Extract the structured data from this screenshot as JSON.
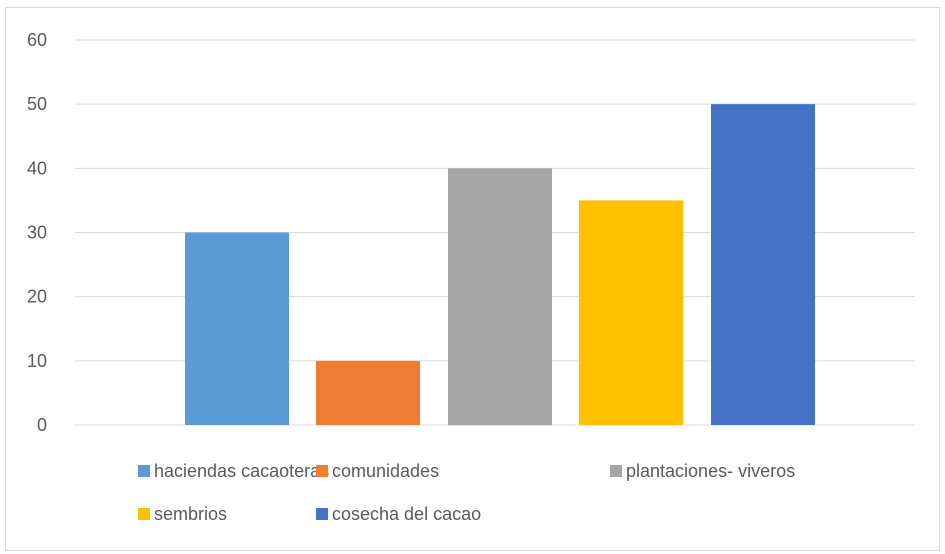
{
  "chart_data": {
    "type": "bar",
    "categories": [
      "haciendas cacaoteras",
      "comunidades",
      "plantaciones- viveros",
      "sembrios",
      "cosecha del cacao"
    ],
    "values": [
      30,
      10,
      40,
      35,
      50
    ],
    "colors": [
      "#5b9bd5",
      "#ed7d31",
      "#a5a5a5",
      "#ffc000",
      "#4472c4"
    ],
    "ylim": [
      0,
      60
    ],
    "yticks": [
      "0",
      "10",
      "20",
      "30",
      "40",
      "50",
      "60"
    ],
    "grid": true,
    "legend_position": "bottom",
    "title": "",
    "xlabel": "",
    "ylabel": ""
  }
}
